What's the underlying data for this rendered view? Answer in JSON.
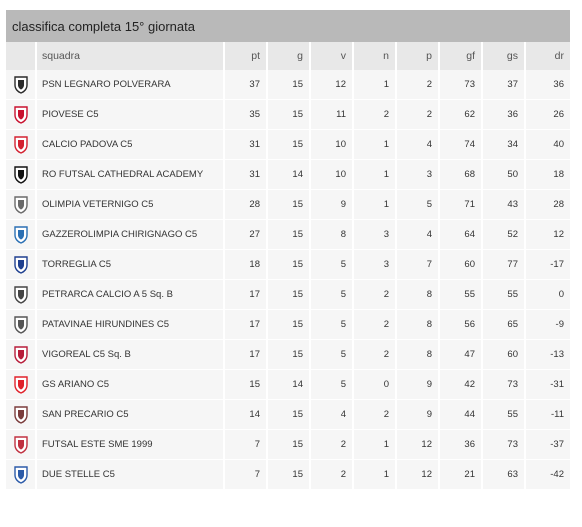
{
  "title": "classifica completa 15° giornata",
  "columns": {
    "team": "squadra",
    "pt": "pt",
    "g": "g",
    "v": "v",
    "n": "n",
    "p": "p",
    "gf": "gf",
    "gs": "gs",
    "dr": "dr"
  },
  "rows": [
    {
      "team": "PSN LEGNARO POLVERARA",
      "pt": "37",
      "g": "15",
      "v": "12",
      "n": "1",
      "p": "2",
      "gf": "73",
      "gs": "37",
      "dr": "36",
      "logo": "psn-legnaro-crest-icon",
      "color": "#2a2a2a"
    },
    {
      "team": "PIOVESE C5",
      "pt": "35",
      "g": "15",
      "v": "11",
      "n": "2",
      "p": "2",
      "gf": "62",
      "gs": "36",
      "dr": "26",
      "logo": "piovese-crest-icon",
      "color": "#c8102e"
    },
    {
      "team": "CALCIO PADOVA C5",
      "pt": "31",
      "g": "15",
      "v": "10",
      "n": "1",
      "p": "4",
      "gf": "74",
      "gs": "34",
      "dr": "40",
      "logo": "calcio-padova-shield-icon",
      "color": "#d32030"
    },
    {
      "team": "RO FUTSAL CATHEDRAL ACADEMY",
      "pt": "31",
      "g": "14",
      "v": "10",
      "n": "1",
      "p": "3",
      "gf": "68",
      "gs": "50",
      "dr": "18",
      "logo": "ro-futsal-logo-icon",
      "color": "#111111"
    },
    {
      "team": "OLIMPIA VETERNIGO C5",
      "pt": "28",
      "g": "15",
      "v": "9",
      "n": "1",
      "p": "5",
      "gf": "71",
      "gs": "43",
      "dr": "28",
      "logo": "olimpia-veternigo-crest-icon",
      "color": "#6a6a6a"
    },
    {
      "team": "GAZZEROLIMPIA CHIRIGNAGO C5",
      "pt": "27",
      "g": "15",
      "v": "8",
      "n": "3",
      "p": "4",
      "gf": "64",
      "gs": "52",
      "dr": "12",
      "logo": "gazzerolimpia-ball-icon",
      "color": "#2a6fb3"
    },
    {
      "team": "TORREGLIA C5",
      "pt": "18",
      "g": "15",
      "v": "5",
      "n": "3",
      "p": "7",
      "gf": "60",
      "gs": "77",
      "dr": "-17",
      "logo": "torreglia-shield-icon",
      "color": "#1e3f8f"
    },
    {
      "team": "PETRARCA CALCIO A 5 Sq. B",
      "pt": "17",
      "g": "15",
      "v": "5",
      "n": "2",
      "p": "8",
      "gf": "55",
      "gs": "55",
      "dr": "0",
      "logo": "petrarca-shield-icon",
      "color": "#444444"
    },
    {
      "team": "PATAVINAE HIRUNDINES C5",
      "pt": "17",
      "g": "15",
      "v": "5",
      "n": "2",
      "p": "8",
      "gf": "56",
      "gs": "65",
      "dr": "-9",
      "logo": "patavinae-swallow-icon",
      "color": "#555555"
    },
    {
      "team": "VIGOREAL C5 Sq. B",
      "pt": "17",
      "g": "15",
      "v": "5",
      "n": "2",
      "p": "8",
      "gf": "47",
      "gs": "60",
      "dr": "-13",
      "logo": "vigoreal-shield-icon",
      "color": "#b71c3a"
    },
    {
      "team": "GS ARIANO C5",
      "pt": "15",
      "g": "14",
      "v": "5",
      "n": "0",
      "p": "9",
      "gf": "42",
      "gs": "73",
      "dr": "-31",
      "logo": "gs-ariano-crest-icon",
      "color": "#e0202a"
    },
    {
      "team": "SAN PRECARIO C5",
      "pt": "14",
      "g": "15",
      "v": "4",
      "n": "2",
      "p": "9",
      "gf": "44",
      "gs": "55",
      "dr": "-11",
      "logo": "san-precario-badge-icon",
      "color": "#7a3b3b"
    },
    {
      "team": "FUTSAL ESTE SME 1999",
      "pt": "7",
      "g": "15",
      "v": "2",
      "n": "1",
      "p": "12",
      "gf": "36",
      "gs": "73",
      "dr": "-37",
      "logo": "futsal-este-crest-icon",
      "color": "#c03040"
    },
    {
      "team": "DUE STELLE C5",
      "pt": "7",
      "g": "15",
      "v": "2",
      "n": "1",
      "p": "12",
      "gf": "21",
      "gs": "63",
      "dr": "-42",
      "logo": "due-stelle-shield-icon",
      "color": "#2b5aa8"
    }
  ]
}
